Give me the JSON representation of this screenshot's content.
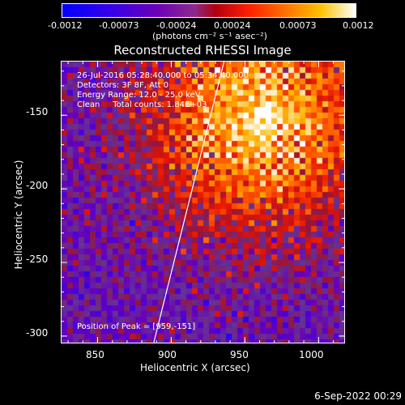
{
  "colorbar": {
    "tick_labels": [
      "-0.0012",
      "-0.00073",
      "-0.00024",
      "0.00024",
      "0.00073",
      "0.0012"
    ],
    "units_label": "(photons cm⁻² s⁻¹ asec⁻²)",
    "range": [
      -0.0012,
      0.0012
    ]
  },
  "chart_data": {
    "type": "heatmap",
    "title": "Reconstructed RHESSI Image",
    "xlabel": "Heliocentric X (arcsec)",
    "ylabel": "Heliocentric Y (arcsec)",
    "xlim": [
      825,
      1018
    ],
    "ylim": [
      -305,
      -113
    ],
    "xticks": [
      850,
      900,
      950,
      1000
    ],
    "yticks": [
      -150,
      -200,
      -250,
      -300
    ],
    "limb_line": [
      [
        888,
        -305
      ],
      [
        936,
        -113
      ]
    ],
    "peak": [
      959,
      -151
    ]
  },
  "info": {
    "time": "26-Jul-2016 05:28:40.000 to 05:34:40.000",
    "detectors": "Detectors: 3F 8F, Att 0",
    "energy": "Energy Range: 12.0 - 25.0 keV",
    "clean": "Clean     Total counts: 1.84E+03",
    "peak_label": "Position of Peak = [959,-151]"
  },
  "footer": {
    "date": "6-Sep-2022 00:29"
  }
}
